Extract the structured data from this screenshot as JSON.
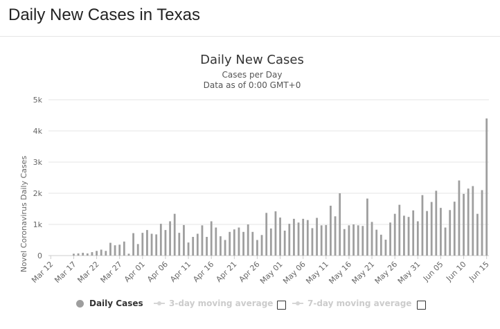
{
  "page": {
    "title": "Daily New Cases in Texas"
  },
  "chart_data": {
    "type": "bar",
    "title": "Daily New Cases",
    "subtitle": "Cases per Day",
    "subtitle2": "Data as of 0:00 GMT+0",
    "ylabel": "Novel Coronavirus Daily Cases",
    "xlabel": "",
    "ylim": [
      0,
      5000
    ],
    "yticks": [
      0,
      1000,
      2000,
      3000,
      4000,
      5000
    ],
    "ytick_labels": [
      "0",
      "1k",
      "2k",
      "3k",
      "4k",
      "5k"
    ],
    "grid": true,
    "legend_position": "bottom",
    "bar_color": "#9e9e9e",
    "xtick_labels": [
      "Mar 12",
      "Mar 17",
      "Mar 22",
      "Mar 27",
      "Apr 01",
      "Apr 06",
      "Apr 11",
      "Apr 16",
      "Apr 21",
      "Apr 26",
      "May 01",
      "May 06",
      "May 11",
      "May 16",
      "May 21",
      "May 26",
      "May 31",
      "Jun 05",
      "Jun 10",
      "Jun 15"
    ],
    "xtick_every": 5,
    "start_label": "Mar 12",
    "series": [
      {
        "name": "Daily Cases",
        "values": [
          0,
          0,
          0,
          0,
          0,
          60,
          70,
          90,
          70,
          110,
          150,
          190,
          150,
          410,
          330,
          350,
          450,
          60,
          720,
          370,
          730,
          820,
          700,
          680,
          1020,
          820,
          1100,
          1340,
          730,
          980,
          420,
          600,
          700,
          970,
          600,
          1100,
          900,
          620,
          500,
          760,
          840,
          900,
          760,
          1000,
          760,
          500,
          660,
          1370,
          870,
          1420,
          1220,
          800,
          1020,
          1180,
          1060,
          1180,
          1140,
          880,
          1210,
          970,
          980,
          1600,
          1260,
          2000,
          850,
          970,
          1000,
          970,
          950,
          1830,
          1080,
          830,
          670,
          510,
          1060,
          1340,
          1630,
          1280,
          1240,
          1450,
          1100,
          1940,
          1430,
          1720,
          2080,
          1530,
          900,
          1460,
          1730,
          2410,
          1980,
          2150,
          2230,
          1340,
          2100,
          4400
        ]
      },
      {
        "name": "3-day moving average",
        "values": []
      },
      {
        "name": "7-day moving average",
        "values": []
      }
    ]
  },
  "legend": {
    "daily_cases": "Daily Cases",
    "avg3": "3-day moving average",
    "avg7": "7-day moving average"
  }
}
